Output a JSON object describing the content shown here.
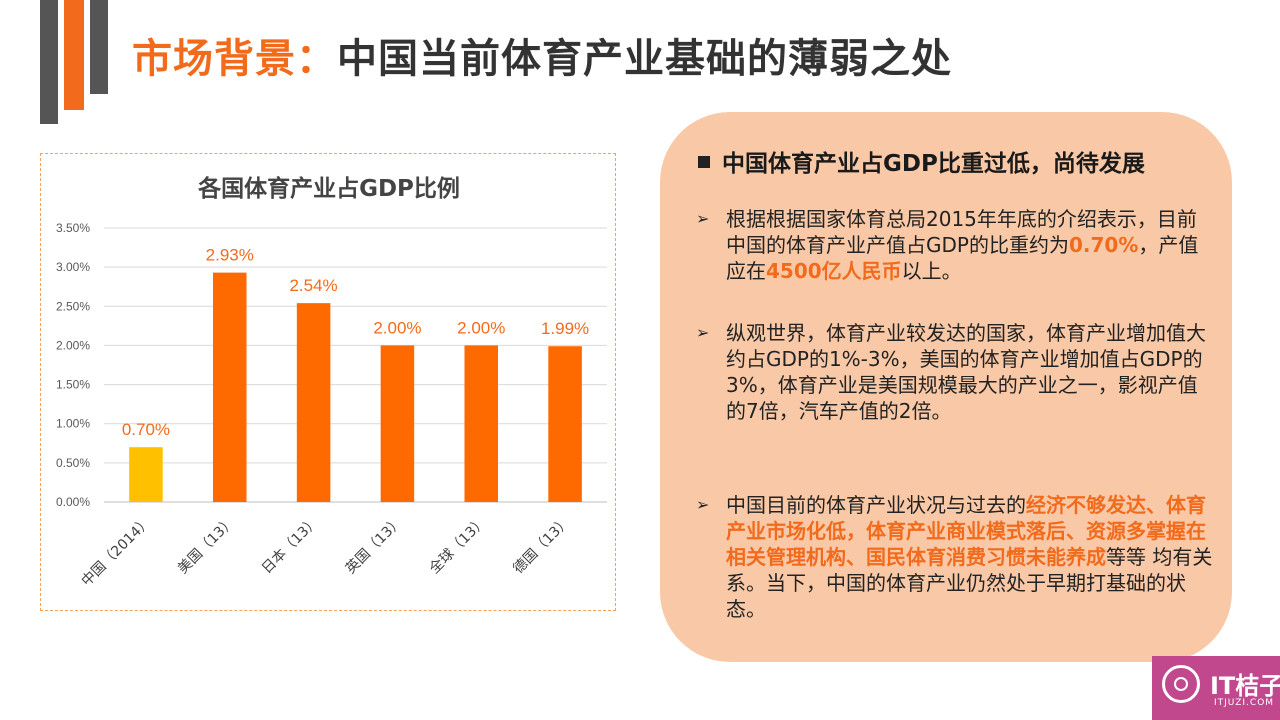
{
  "slide": {
    "title_accent": "市场背景：",
    "title_rest": "中国当前体育产业基础的薄弱之处",
    "colors": {
      "accent": "#f26b1d",
      "dark_bar": "#555555",
      "panel": "#f9c9a7"
    }
  },
  "panel": {
    "heading": "中国体育产业占GDP比重过低，尚待发展",
    "bullet1": {
      "t1": "根据根据国家体育总局2015年年底的介绍表示，目前中国的体育产业产值占GDP的比重约为",
      "h1": "0.70%",
      "t2": "，产值应在",
      "h2": "4500亿人民币",
      "t3": "以上。"
    },
    "bullet2": {
      "t1": "纵观世界，体育产业较发达的国家，体育产业增加值大约占GDP的1%-3%，美国的体育产业增加值占GDP的3%，体育产业是美国规模最大的产业之一，影视产值的7倍，汽车产值的2倍。"
    },
    "bullet3": {
      "t1": "中国目前的体育产业状况与过去的",
      "h1": "经济不够发达、体育产业市场化低，体育产业商业模式落后、资源多掌握在相关管理机构、国民体育消费习惯未能养成",
      "t2": "等等 均有关系。当下，中国的体育产业仍然处于早期打基础的状态。"
    }
  },
  "logo": {
    "name": "IT桔子",
    "url": "ITJUZI.COM"
  },
  "chart_data": {
    "type": "bar",
    "title": "各国体育产业占GDP比例",
    "categories": [
      "中国（2014）",
      "美国（13）",
      "日本（13）",
      "英国（13）",
      "全球（13）",
      "德国（13）"
    ],
    "values": [
      0.7,
      2.93,
      2.54,
      2.0,
      2.0,
      1.99
    ],
    "data_labels": [
      "0.70%",
      "2.93%",
      "2.54%",
      "2.00%",
      "2.00%",
      "1.99%"
    ],
    "bar_colors": [
      "#ffc000",
      "#ff6a00",
      "#ff6a00",
      "#ff6a00",
      "#ff6a00",
      "#ff6a00"
    ],
    "label_color": "#f26b1d",
    "ylim": [
      0,
      3.5
    ],
    "yticks": [
      "0.00%",
      "0.50%",
      "1.00%",
      "1.50%",
      "2.00%",
      "2.50%",
      "3.00%",
      "3.50%"
    ],
    "grid": true,
    "legend": "none"
  }
}
